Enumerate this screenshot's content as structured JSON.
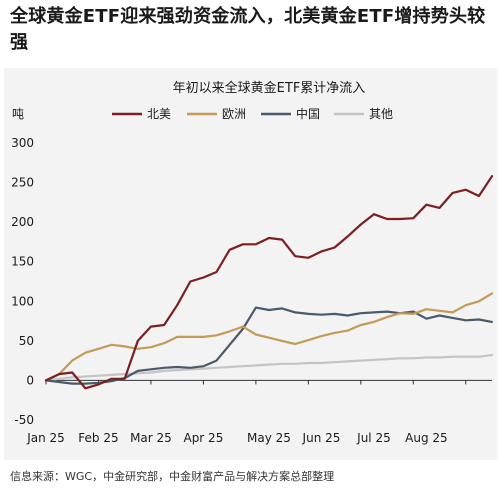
{
  "headline": "全球黄金ETF迎来强劲资金流入，北美黄金ETF增持势头较强",
  "source": "信息来源：WGC，中金研究部，中金财富产品与解决方案总部整理",
  "chart_data": {
    "type": "line",
    "title": "年初以来全球黄金ETF累计净流入",
    "ylabel": "吨",
    "ylim": [
      -50,
      300
    ],
    "yticks": [
      -50,
      0,
      50,
      100,
      150,
      200,
      250,
      300
    ],
    "xlim": [
      0,
      31
    ],
    "xticks": [
      {
        "x": 0,
        "label": "Jan 25"
      },
      {
        "x": 4,
        "label": "Feb 25"
      },
      {
        "x": 8,
        "label": "Mar 25"
      },
      {
        "x": 12,
        "label": "Apr 25"
      },
      {
        "x": 17,
        "label": "May 25"
      },
      {
        "x": 21,
        "label": "Jun 25"
      },
      {
        "x": 25,
        "label": "Jul 25"
      },
      {
        "x": 29,
        "label": "Aug 25"
      }
    ],
    "grid": false,
    "legend_position": "top",
    "x": [
      0,
      1,
      2,
      3,
      4,
      5,
      6,
      7,
      8,
      9,
      10,
      11,
      12,
      13,
      14,
      15,
      16,
      17,
      18,
      19,
      20,
      21,
      22,
      23,
      24,
      25,
      26,
      27,
      28,
      29,
      30,
      31,
      32,
      33,
      34
    ],
    "series": [
      {
        "name": "北美",
        "color": "#7b1f1f",
        "values": [
          0,
          8,
          10,
          -10,
          -5,
          2,
          2,
          50,
          68,
          70,
          95,
          125,
          130,
          137,
          165,
          172,
          172,
          180,
          178,
          157,
          155,
          163,
          168,
          182,
          197,
          210,
          204,
          204,
          205,
          222,
          218,
          237,
          241,
          233,
          258
        ]
      },
      {
        "name": "欧洲",
        "color": "#c39a58",
        "values": [
          0,
          8,
          25,
          35,
          40,
          45,
          43,
          40,
          42,
          47,
          55,
          55,
          55,
          57,
          62,
          68,
          58,
          54,
          50,
          46,
          51,
          56,
          60,
          63,
          70,
          74,
          80,
          85,
          84,
          90,
          88,
          86,
          95,
          100,
          110
        ]
      },
      {
        "name": "中国",
        "color": "#4a5a6b",
        "values": [
          0,
          -2,
          -4,
          -4,
          -3,
          -1,
          3,
          12,
          14,
          16,
          17,
          16,
          18,
          25,
          45,
          65,
          92,
          89,
          91,
          86,
          84,
          83,
          84,
          82,
          85,
          86,
          87,
          85,
          87,
          78,
          82,
          79,
          76,
          77,
          74
        ]
      },
      {
        "name": "其他",
        "color": "#c4c4c4",
        "values": [
          0,
          2,
          4,
          5,
          6,
          7,
          8,
          9,
          10,
          12,
          13,
          14,
          15,
          16,
          17,
          18,
          19,
          20,
          21,
          21,
          22,
          22,
          23,
          24,
          25,
          26,
          27,
          28,
          28,
          29,
          29,
          30,
          30,
          30,
          32
        ]
      }
    ]
  }
}
